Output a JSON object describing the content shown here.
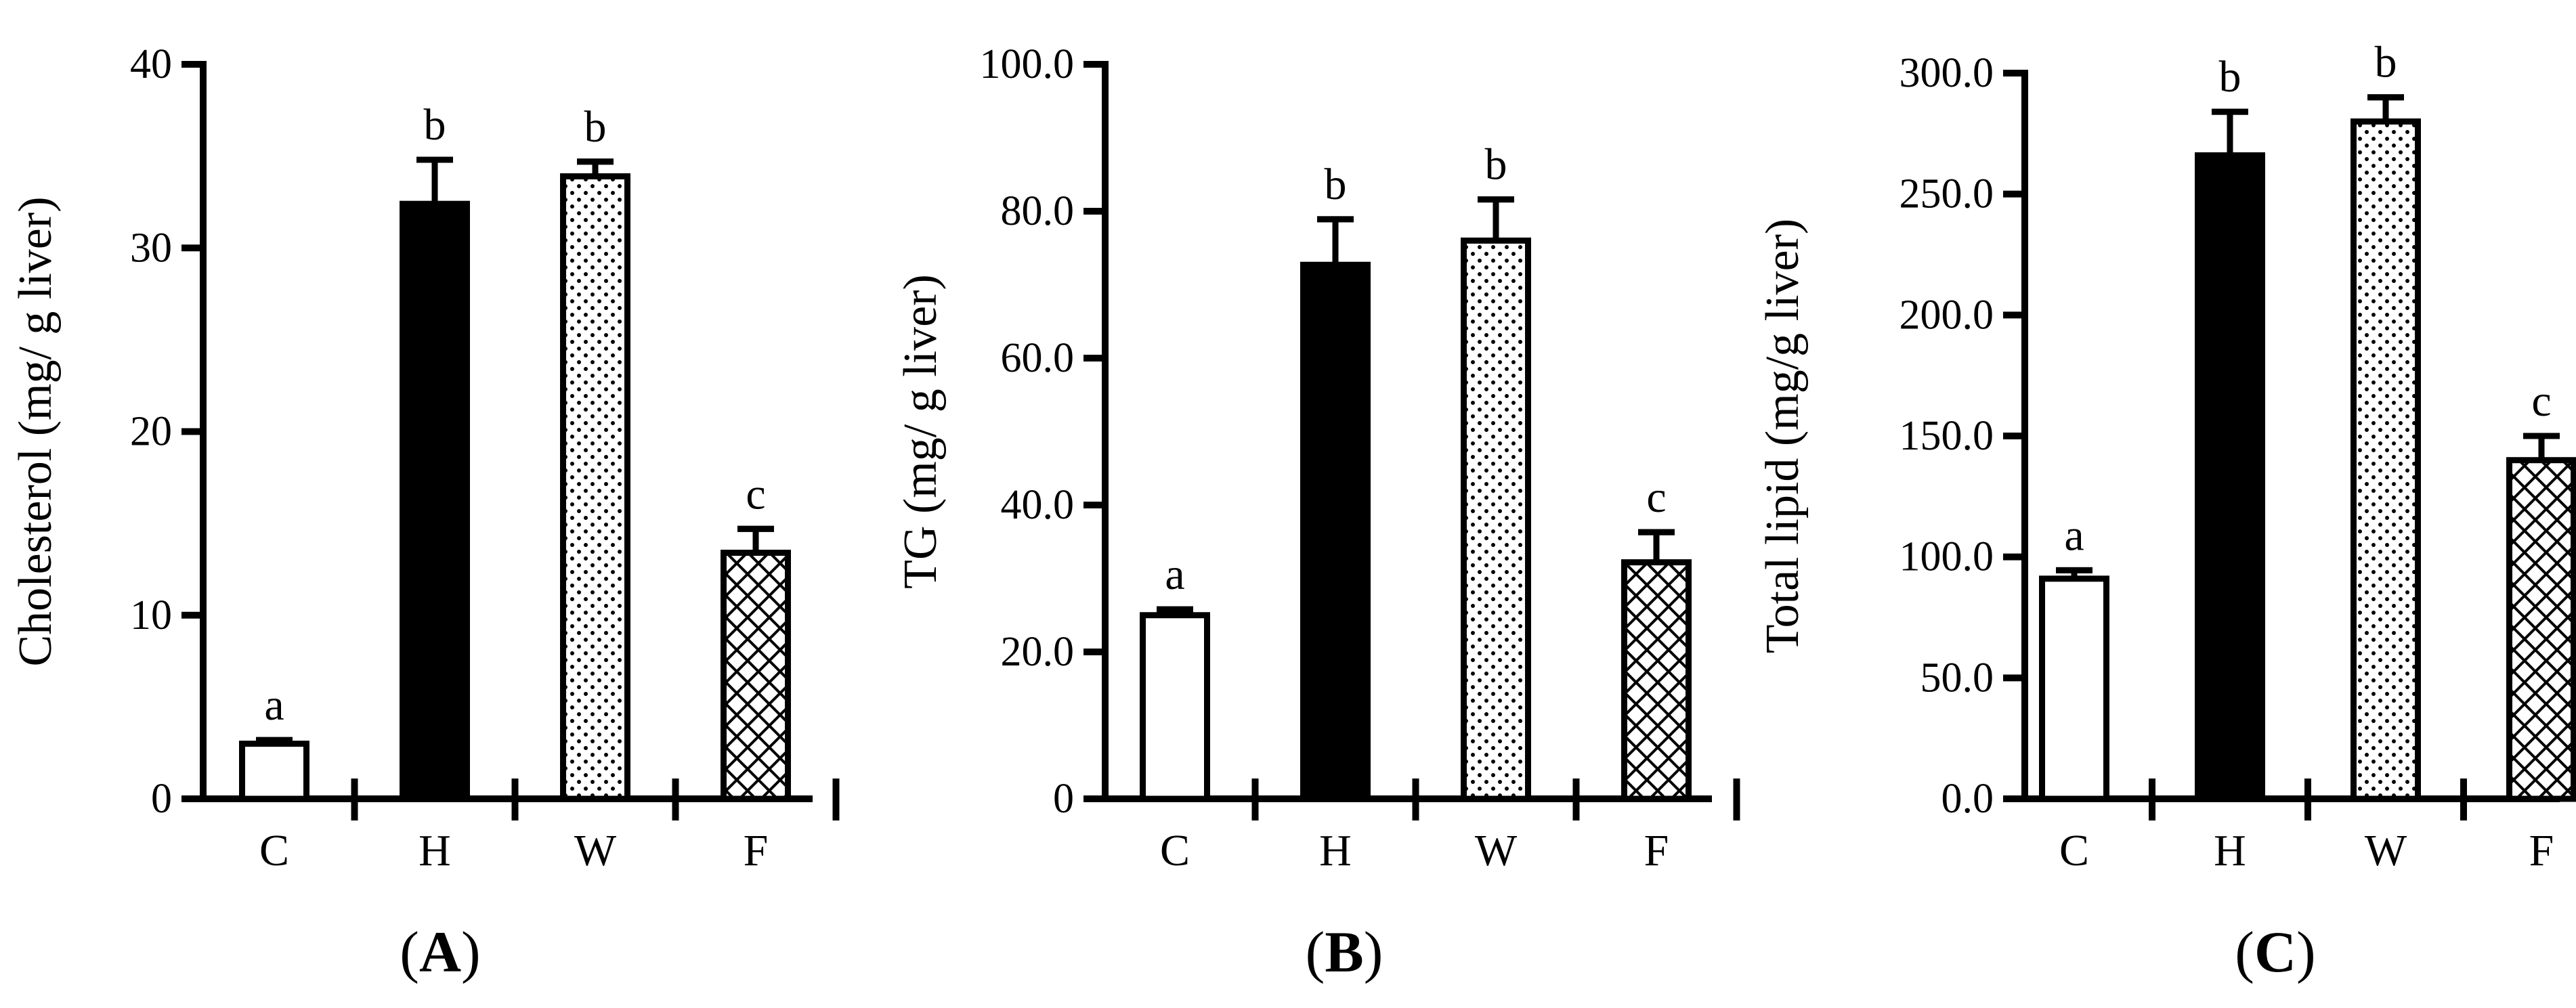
{
  "colors": {
    "axis": "#000000",
    "bar_fill_C": "#ffffff",
    "bar_fill_H": "#000000",
    "bar_pattern": "#000000"
  },
  "chart_data": [
    {
      "type": "bar",
      "panel_label": "A",
      "categories": [
        "C",
        "H",
        "W",
        "F"
      ],
      "bar_styles": [
        "open",
        "solid",
        "dotted",
        "crosshatch"
      ],
      "values": [
        3.0,
        32.4,
        33.9,
        13.4
      ],
      "errors": [
        0.2,
        2.4,
        0.8,
        1.3
      ],
      "significance": [
        "a",
        "b",
        "b",
        "c"
      ],
      "ylabel": "Cholesterol (mg/ g liver)",
      "xlabel": "",
      "ylim": [
        0,
        40
      ],
      "yticks": [
        0,
        10,
        20,
        30,
        40
      ],
      "ytick_labels": [
        "0",
        "10",
        "20",
        "30",
        "40"
      ],
      "grid": false
    },
    {
      "type": "bar",
      "panel_label": "B",
      "categories": [
        "C",
        "H",
        "W",
        "F"
      ],
      "bar_styles": [
        "open",
        "solid",
        "dotted",
        "crosshatch"
      ],
      "values": [
        25.0,
        72.7,
        76.0,
        32.2
      ],
      "errors": [
        0.8,
        6.2,
        5.6,
        4.1
      ],
      "significance": [
        "a",
        "b",
        "b",
        "c"
      ],
      "ylabel": "TG (mg/ g liver)",
      "xlabel": "",
      "ylim": [
        0,
        100
      ],
      "yticks": [
        0,
        20,
        40,
        60,
        80,
        100
      ],
      "ytick_labels": [
        "0",
        "20.0",
        "40.0",
        "60.0",
        "80.0",
        "100.0"
      ],
      "grid": false
    },
    {
      "type": "bar",
      "panel_label": "C",
      "categories": [
        "C",
        "H",
        "W",
        "F"
      ],
      "bar_styles": [
        "open",
        "solid",
        "dotted",
        "crosshatch"
      ],
      "values": [
        91.0,
        266.0,
        280.0,
        140.0
      ],
      "errors": [
        3.5,
        18.0,
        10.0,
        10.0
      ],
      "significance": [
        "a",
        "b",
        "b",
        "c"
      ],
      "ylabel": "Total lipid (mg/g liver)",
      "xlabel": "",
      "ylim": [
        0,
        300
      ],
      "yticks": [
        0,
        50,
        100,
        150,
        200,
        250,
        300
      ],
      "ytick_labels": [
        "0.0",
        "50.0",
        "100.0",
        "150.0",
        "200.0",
        "250.0",
        "300.0"
      ],
      "grid": false
    }
  ]
}
